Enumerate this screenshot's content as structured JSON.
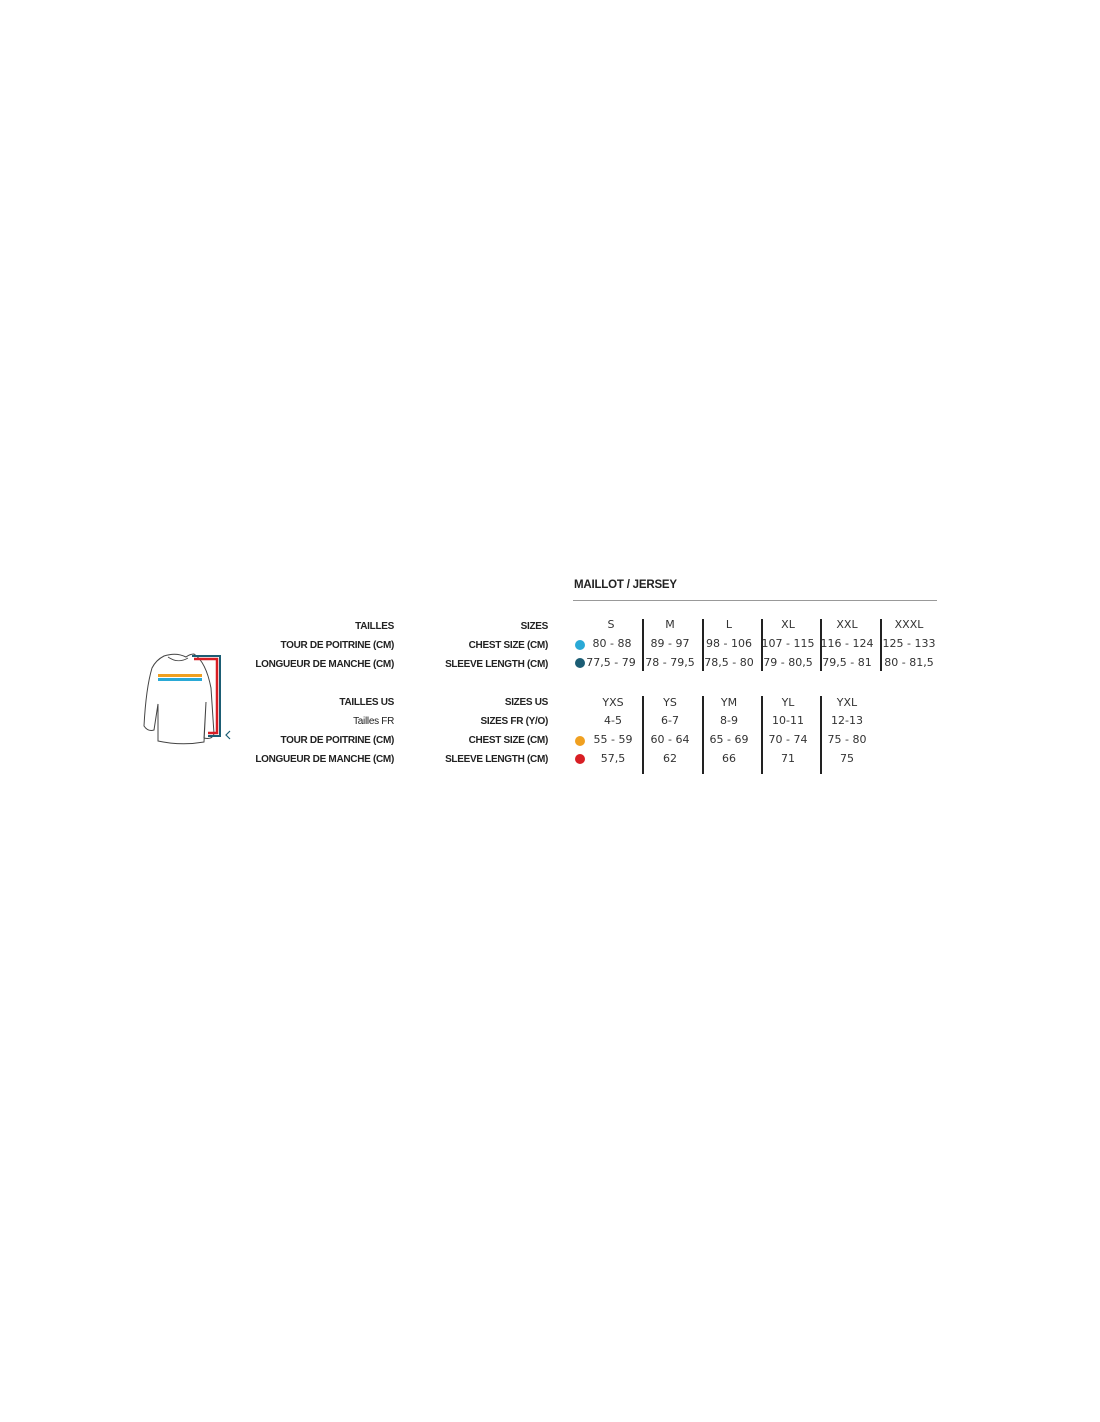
{
  "title": "MAILLOT / JERSEY",
  "adult": {
    "labels_fr": [
      "TAILLES",
      "TOUR DE POITRINE (CM)",
      "LONGUEUR DE MANCHE (CM)"
    ],
    "labels_en": [
      "SIZES",
      "CHEST SIZE (CM)",
      "SLEEVE LENGTH (CM)"
    ],
    "marker_colors": [
      "#2aa9d6",
      "#1b5d74"
    ],
    "columns": [
      {
        "size": "S",
        "chest": "80 - 88",
        "sleeve": "77,5 - 79"
      },
      {
        "size": "M",
        "chest": "89 - 97",
        "sleeve": "78 - 79,5"
      },
      {
        "size": "L",
        "chest": "98 - 106",
        "sleeve": "78,5 - 80"
      },
      {
        "size": "XL",
        "chest": "107 - 115",
        "sleeve": "79 - 80,5"
      },
      {
        "size": "XXL",
        "chest": "116 - 124",
        "sleeve": "79,5 - 81"
      },
      {
        "size": "XXXL",
        "chest": "125 - 133",
        "sleeve": "80 - 81,5"
      }
    ]
  },
  "youth": {
    "labels_fr": [
      "TAILLES US",
      "Tailles FR",
      "TOUR DE POITRINE (CM)",
      "LONGUEUR DE MANCHE (CM)"
    ],
    "labels_en": [
      "SIZES US",
      "SIZES FR (Y/O)",
      "CHEST SIZE (CM)",
      "SLEEVE LENGTH (CM)"
    ],
    "marker_colors": [
      "#f0a020",
      "#d81e24"
    ],
    "columns": [
      {
        "size": "YXS",
        "fr": "4-5",
        "chest": "55 - 59",
        "sleeve": "57,5"
      },
      {
        "size": "YS",
        "fr": "6-7",
        "chest": "60 - 64",
        "sleeve": "62"
      },
      {
        "size": "YM",
        "fr": "8-9",
        "chest": "65 - 69",
        "sleeve": "66"
      },
      {
        "size": "YL",
        "fr": "10-11",
        "chest": "70 - 74",
        "sleeve": "71"
      },
      {
        "size": "YXL",
        "fr": "12-13",
        "chest": "75 - 80",
        "sleeve": "75"
      }
    ]
  },
  "illustration": {
    "icon": "jersey-measurement-icon",
    "colors": {
      "chest_adult": "#2aa9d6",
      "chest_youth": "#f0a020",
      "sleeve_adult": "#1b5d74",
      "sleeve_youth": "#d81e24"
    }
  }
}
